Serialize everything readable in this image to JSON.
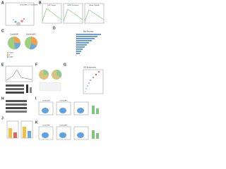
{
  "panels": [
    {
      "label": "A",
      "title": "Ctnnb1ΔHC vs Ctnnb1fl/fl"
    },
    {
      "label": "B",
      "titles": [
        "E2F Targets",
        "G2M Checkpoint",
        "Mitotic Spindle"
      ]
    },
    {
      "label": "C",
      "titles": [
        "Ctnnb1fl/fl",
        "Ctnnb1ΔHC"
      ],
      "legend": [
        "G0/G1",
        "S",
        "G2/M"
      ]
    },
    {
      "label": "D",
      "title": "Biol Process"
    },
    {
      "label": "E"
    },
    {
      "label": "F"
    },
    {
      "label": "G",
      "title": "GO Enrichment"
    },
    {
      "label": "H"
    },
    {
      "label": "I",
      "titles": [
        "Ctnnb1fl/fl",
        "Ctnnb1ΔHC"
      ]
    },
    {
      "label": "J"
    },
    {
      "label": "K",
      "titles": [
        "Ctnnb1fl/fl",
        "Ctnnb1ΔHC"
      ]
    }
  ]
}
